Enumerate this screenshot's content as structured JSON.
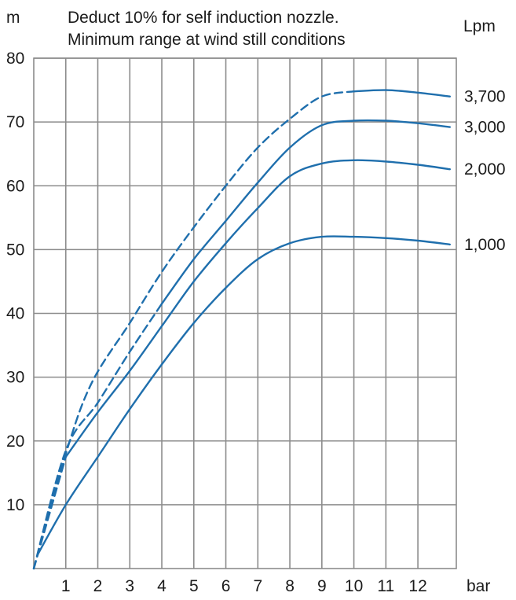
{
  "chart_data": {
    "type": "line",
    "title_lines": [
      "Deduct 10% for self induction nozzle.",
      "Minimum range at wind still conditions"
    ],
    "y_unit": "m",
    "x_unit": "bar",
    "series_unit": "Lpm",
    "xlim": [
      0,
      13.2
    ],
    "ylim": [
      0,
      80
    ],
    "x_ticks": [
      1,
      2,
      3,
      4,
      5,
      6,
      7,
      8,
      9,
      10,
      11,
      12
    ],
    "y_ticks": [
      10,
      20,
      30,
      40,
      50,
      60,
      70,
      80
    ],
    "grid": true,
    "color": "#1f6fad",
    "series": [
      {
        "name": "1,000",
        "segments": [
          {
            "style": "solid",
            "points": [
              [
                0.1,
                2
              ],
              [
                1,
                10
              ],
              [
                2,
                17.5
              ],
              [
                3,
                25
              ],
              [
                4,
                32
              ],
              [
                5,
                38.5
              ],
              [
                6,
                44
              ],
              [
                7,
                48.5
              ],
              [
                8,
                51
              ],
              [
                9,
                52
              ],
              [
                10,
                52
              ],
              [
                11,
                51.8
              ],
              [
                12,
                51.4
              ],
              [
                13,
                50.8
              ]
            ]
          }
        ]
      },
      {
        "name": "2,000",
        "segments": [
          {
            "style": "dashed",
            "points": [
              [
                0,
                0
              ],
              [
                1,
                17.5
              ]
            ]
          },
          {
            "style": "solid",
            "points": [
              [
                1,
                17.5
              ],
              [
                2,
                24.5
              ],
              [
                3,
                31
              ],
              [
                4,
                38
              ],
              [
                5,
                45
              ],
              [
                6,
                51
              ],
              [
                7,
                56.5
              ],
              [
                8,
                61.5
              ],
              [
                9,
                63.5
              ],
              [
                10,
                64
              ],
              [
                11,
                63.8
              ],
              [
                12,
                63.3
              ],
              [
                13,
                62.6
              ]
            ]
          }
        ]
      },
      {
        "name": "3,000",
        "segments": [
          {
            "style": "dashed",
            "points": [
              [
                0,
                0
              ],
              [
                1,
                18.5
              ],
              [
                2,
                26
              ],
              [
                3,
                34
              ],
              [
                4,
                41.5
              ]
            ]
          },
          {
            "style": "solid",
            "points": [
              [
                4,
                41.5
              ],
              [
                5,
                48.5
              ],
              [
                6,
                54.5
              ],
              [
                7,
                60.5
              ],
              [
                8,
                66
              ],
              [
                9,
                69.5
              ],
              [
                10,
                70.2
              ],
              [
                11,
                70.2
              ],
              [
                12,
                69.8
              ],
              [
                13,
                69.2
              ]
            ]
          }
        ]
      },
      {
        "name": "3,700",
        "segments": [
          {
            "style": "dashed",
            "points": [
              [
                0,
                0
              ],
              [
                1,
                18
              ],
              [
                1.8,
                29
              ],
              [
                3,
                38.5
              ],
              [
                4,
                46.5
              ],
              [
                5,
                53.5
              ],
              [
                6,
                60
              ],
              [
                7,
                66
              ],
              [
                8,
                70.5
              ],
              [
                9,
                74
              ],
              [
                10,
                74.8
              ]
            ]
          },
          {
            "style": "solid",
            "points": [
              [
                10,
                74.8
              ],
              [
                11,
                75
              ],
              [
                12,
                74.6
              ],
              [
                13,
                74
              ]
            ]
          }
        ]
      }
    ]
  }
}
